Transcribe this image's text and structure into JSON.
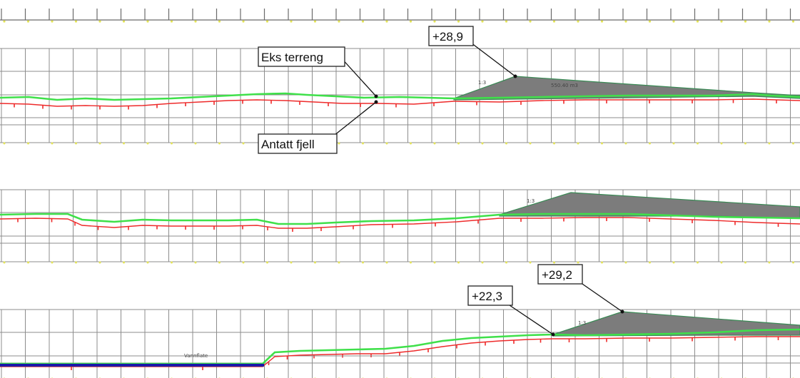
{
  "callouts": {
    "eks_terreng": "Eks terreng",
    "antatt_fjell": "Antatt fjell",
    "plus_28_9": "+28,9",
    "plus_29_2": "+29,2",
    "plus_22_3": "+22,3"
  },
  "slope_labels": {
    "section1": "1:3",
    "section2": "1:3",
    "section3": "1:3"
  },
  "volume_label": "550.40 m3",
  "water_label": "Vannflate",
  "colors": {
    "terrain": "#3fe04a",
    "rock": "#ee2a2a",
    "fill": "#7c7c7c",
    "water": "#1a1aa8",
    "grid": "#8c8c8c"
  }
}
